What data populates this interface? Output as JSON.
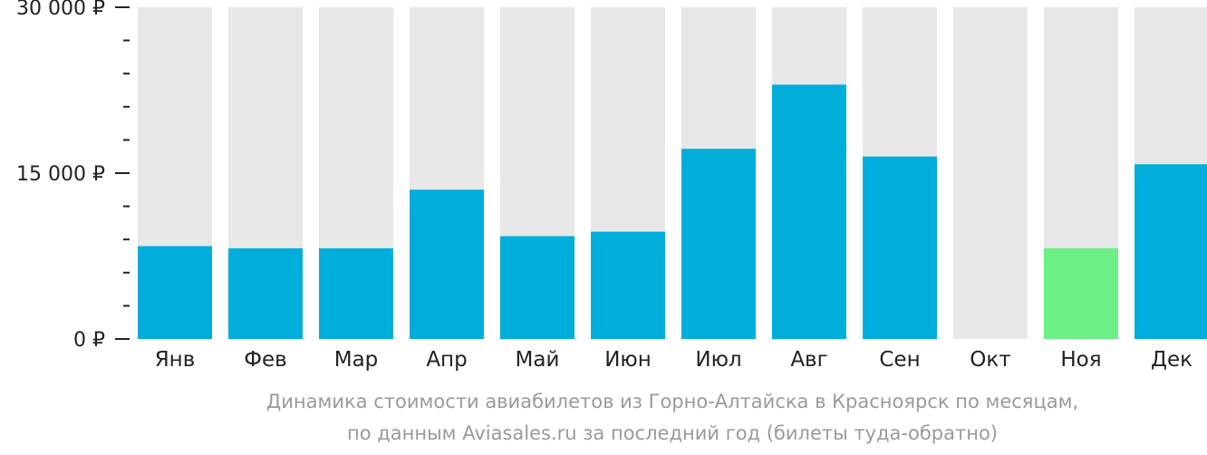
{
  "chart_data": {
    "type": "bar",
    "categories": [
      "Янв",
      "Фев",
      "Мар",
      "Апр",
      "Май",
      "Июн",
      "Июл",
      "Авг",
      "Сен",
      "Окт",
      "Ноя",
      "Дек"
    ],
    "values": [
      8400,
      8200,
      8200,
      13500,
      9300,
      9700,
      17200,
      23000,
      16500,
      0,
      8200,
      15800
    ],
    "highlight": [
      false,
      false,
      false,
      false,
      false,
      false,
      false,
      false,
      false,
      false,
      true,
      false
    ],
    "ylim": [
      0,
      30000
    ],
    "yticks": [
      0,
      15000,
      30000
    ],
    "ytick_labels": [
      "0 ₽",
      "15 000 ₽",
      "30 000 ₽"
    ],
    "minor_ticks": 10,
    "title": "",
    "xlabel": "",
    "ylabel": "",
    "colors": {
      "bar": "#00aedb",
      "highlight": "#6cf085",
      "track": "#e8e8e8",
      "axis_text": "#222222",
      "tick": "#222222"
    }
  },
  "caption": {
    "line1": "Динамика стоимости авиабилетов из Горно-Алтайска в Красноярск по месяцам,",
    "line2": "по данным Aviasales.ru за последний год (билеты туда-обратно)"
  }
}
